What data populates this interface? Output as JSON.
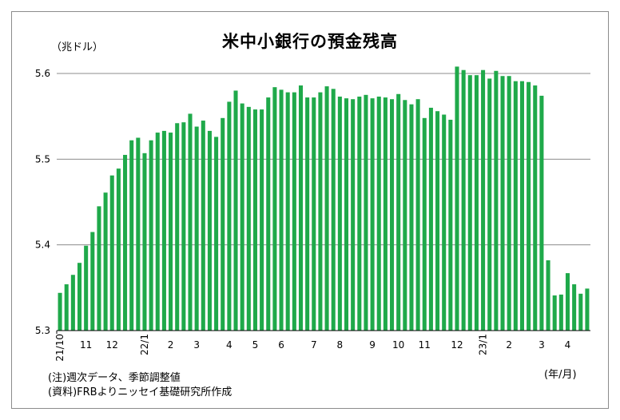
{
  "chart_data": {
    "type": "bar",
    "title": "米中小銀行の預金残高",
    "ylabel": "（兆ドル）",
    "xlabel": "(年/月)",
    "ylim": [
      5.3,
      5.6
    ],
    "yticks": [
      "5.3",
      "5.4",
      "5.5",
      "5.6"
    ],
    "grid": true,
    "legend": "none",
    "bar_color": "#1fa94a",
    "x_labels": [
      {
        "label": "21/10",
        "index": 0,
        "rotated": true
      },
      {
        "label": "11",
        "index": 4
      },
      {
        "label": "12",
        "index": 8
      },
      {
        "label": "22/1",
        "index": 13,
        "rotated": true
      },
      {
        "label": "2",
        "index": 17
      },
      {
        "label": "3",
        "index": 21
      },
      {
        "label": "4",
        "index": 26
      },
      {
        "label": "5",
        "index": 30
      },
      {
        "label": "6",
        "index": 34
      },
      {
        "label": "7",
        "index": 39
      },
      {
        "label": "8",
        "index": 43
      },
      {
        "label": "9",
        "index": 48
      },
      {
        "label": "10",
        "index": 52
      },
      {
        "label": "11",
        "index": 56
      },
      {
        "label": "12",
        "index": 61
      },
      {
        "label": "23/1",
        "index": 65,
        "rotated": true
      },
      {
        "label": "2",
        "index": 69
      },
      {
        "label": "3",
        "index": 74
      },
      {
        "label": "4",
        "index": 78
      }
    ],
    "values": [
      5.344,
      5.354,
      5.365,
      5.379,
      5.399,
      5.415,
      5.445,
      5.461,
      5.481,
      5.489,
      5.505,
      5.522,
      5.525,
      5.507,
      5.522,
      5.531,
      5.533,
      5.531,
      5.542,
      5.543,
      5.553,
      5.538,
      5.545,
      5.533,
      5.526,
      5.548,
      5.567,
      5.58,
      5.565,
      5.561,
      5.558,
      5.558,
      5.572,
      5.584,
      5.581,
      5.578,
      5.578,
      5.586,
      5.572,
      5.572,
      5.578,
      5.585,
      5.582,
      5.573,
      5.571,
      5.57,
      5.573,
      5.575,
      5.571,
      5.573,
      5.572,
      5.57,
      5.576,
      5.569,
      5.564,
      5.57,
      5.548,
      5.56,
      5.556,
      5.552,
      5.546,
      5.608,
      5.604,
      5.598,
      5.598,
      5.604,
      5.594,
      5.603,
      5.597,
      5.597,
      5.591,
      5.591,
      5.59,
      5.586,
      5.574,
      5.382,
      5.341,
      5.342,
      5.367,
      5.354,
      5.343,
      5.349
    ]
  },
  "notes": {
    "line1": "(注)週次データ、季節調整値",
    "line2": "(資料)FRBよりニッセイ基礎研究所作成"
  }
}
